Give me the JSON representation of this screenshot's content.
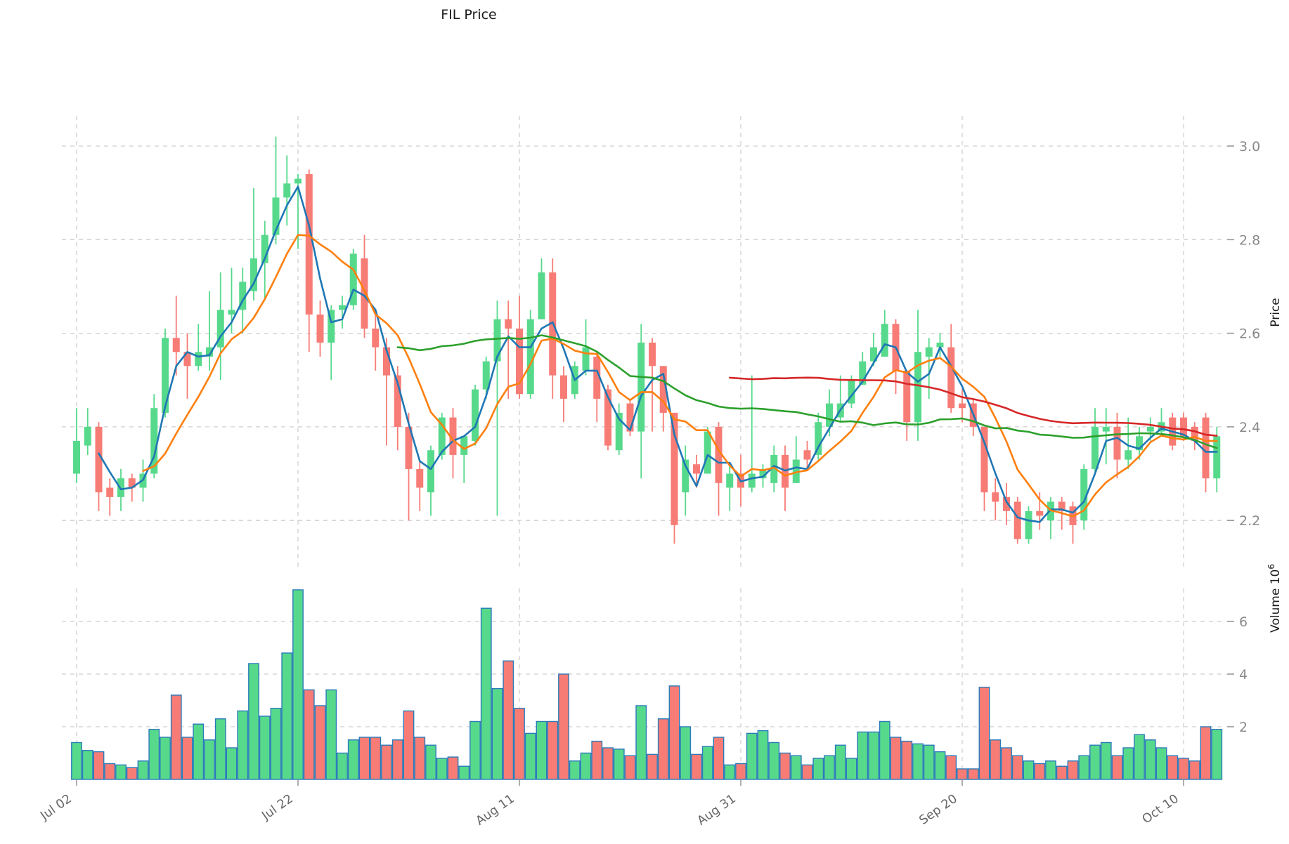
{
  "title": "FIL Price",
  "chart_data": {
    "type": "candlestick",
    "title": "FIL Price",
    "price_axis": {
      "label": "Price",
      "ticks": [
        "3.0",
        "2.8",
        "2.6",
        "2.4",
        "2.2"
      ],
      "tick_values": [
        3.0,
        2.8,
        2.6,
        2.4,
        2.2
      ],
      "ylim": [
        2.09,
        3.06
      ],
      "grid": true
    },
    "volume_axis": {
      "label": "Volume",
      "unit_base": "10",
      "unit_exp": "6",
      "ticks": [
        "6",
        "4",
        "2"
      ],
      "tick_values": [
        6,
        4,
        2
      ],
      "ylim": [
        0,
        7.2
      ],
      "grid": true
    },
    "x_ticks": [
      "Jul 02",
      "Jul 22",
      "Aug 11",
      "Aug 31",
      "Sep 20",
      "Oct 10"
    ],
    "colors": {
      "up": "#57d98c",
      "down": "#f77c76",
      "volume_border": "#2b7bba",
      "ma_fast": "#1f77b4",
      "ma_mid": "#ff7f0e",
      "ma_slow": "#2ca02c",
      "ma_slowest": "#d62728",
      "grid": "#cfcfcf",
      "tick_label": "#8a8a8a",
      "axis_label": "#1a1a1a"
    },
    "moving_averages": [
      {
        "name": "MA3",
        "window": 3,
        "color_key": "ma_fast"
      },
      {
        "name": "MA7",
        "window": 7,
        "color_key": "ma_mid"
      },
      {
        "name": "MA30",
        "window": 30,
        "color_key": "ma_slow"
      },
      {
        "name": "MA60",
        "window": 60,
        "color_key": "ma_slowest"
      }
    ],
    "candles": [
      {
        "d": "Jul 02",
        "o": 2.3,
        "h": 2.44,
        "l": 2.28,
        "c": 2.37,
        "v": 1.4
      },
      {
        "d": "Jul 03",
        "o": 2.36,
        "h": 2.44,
        "l": 2.34,
        "c": 2.4,
        "v": 1.1
      },
      {
        "d": "Jul 04",
        "o": 2.4,
        "h": 2.41,
        "l": 2.22,
        "c": 2.26,
        "v": 1.05
      },
      {
        "d": "Jul 05",
        "o": 2.27,
        "h": 2.29,
        "l": 2.21,
        "c": 2.25,
        "v": 0.6
      },
      {
        "d": "Jul 06",
        "o": 2.25,
        "h": 2.31,
        "l": 2.22,
        "c": 2.29,
        "v": 0.55
      },
      {
        "d": "Jul 07",
        "o": 2.29,
        "h": 2.3,
        "l": 2.24,
        "c": 2.27,
        "v": 0.45
      },
      {
        "d": "Jul 08",
        "o": 2.27,
        "h": 2.33,
        "l": 2.24,
        "c": 2.3,
        "v": 0.7
      },
      {
        "d": "Jul 09",
        "o": 2.3,
        "h": 2.47,
        "l": 2.29,
        "c": 2.44,
        "v": 1.9
      },
      {
        "d": "Jul 10",
        "o": 2.43,
        "h": 2.61,
        "l": 2.42,
        "c": 2.59,
        "v": 1.6
      },
      {
        "d": "Jul 11",
        "o": 2.59,
        "h": 2.68,
        "l": 2.51,
        "c": 2.56,
        "v": 3.2
      },
      {
        "d": "Jul 12",
        "o": 2.56,
        "h": 2.6,
        "l": 2.46,
        "c": 2.53,
        "v": 1.6
      },
      {
        "d": "Jul 13",
        "o": 2.53,
        "h": 2.62,
        "l": 2.52,
        "c": 2.56,
        "v": 2.1
      },
      {
        "d": "Jul 14",
        "o": 2.55,
        "h": 2.69,
        "l": 2.52,
        "c": 2.57,
        "v": 1.5
      },
      {
        "d": "Jul 15",
        "o": 2.57,
        "h": 2.73,
        "l": 2.5,
        "c": 2.65,
        "v": 2.3
      },
      {
        "d": "Jul 16",
        "o": 2.64,
        "h": 2.74,
        "l": 2.6,
        "c": 2.65,
        "v": 1.2
      },
      {
        "d": "Jul 17",
        "o": 2.65,
        "h": 2.74,
        "l": 2.6,
        "c": 2.71,
        "v": 2.6
      },
      {
        "d": "Jul 18",
        "o": 2.69,
        "h": 2.91,
        "l": 2.67,
        "c": 2.76,
        "v": 4.4
      },
      {
        "d": "Jul 19",
        "o": 2.75,
        "h": 2.84,
        "l": 2.67,
        "c": 2.81,
        "v": 2.4
      },
      {
        "d": "Jul 20",
        "o": 2.81,
        "h": 3.02,
        "l": 2.79,
        "c": 2.89,
        "v": 2.7
      },
      {
        "d": "Jul 21",
        "o": 2.89,
        "h": 2.98,
        "l": 2.83,
        "c": 2.92,
        "v": 4.8
      },
      {
        "d": "Jul 22",
        "o": 2.92,
        "h": 2.94,
        "l": 2.78,
        "c": 2.93,
        "v": 7.2
      },
      {
        "d": "Jul 23",
        "o": 2.94,
        "h": 2.95,
        "l": 2.56,
        "c": 2.64,
        "v": 3.4
      },
      {
        "d": "Jul 24",
        "o": 2.64,
        "h": 2.67,
        "l": 2.55,
        "c": 2.58,
        "v": 2.8
      },
      {
        "d": "Jul 25",
        "o": 2.58,
        "h": 2.66,
        "l": 2.5,
        "c": 2.65,
        "v": 3.4
      },
      {
        "d": "Jul 26",
        "o": 2.65,
        "h": 2.68,
        "l": 2.61,
        "c": 2.66,
        "v": 1.0
      },
      {
        "d": "Jul 27",
        "o": 2.66,
        "h": 2.78,
        "l": 2.65,
        "c": 2.77,
        "v": 1.5
      },
      {
        "d": "Jul 28",
        "o": 2.76,
        "h": 2.81,
        "l": 2.59,
        "c": 2.61,
        "v": 1.6
      },
      {
        "d": "Jul 29",
        "o": 2.61,
        "h": 2.64,
        "l": 2.52,
        "c": 2.57,
        "v": 1.6
      },
      {
        "d": "Jul 30",
        "o": 2.57,
        "h": 2.59,
        "l": 2.36,
        "c": 2.51,
        "v": 1.3
      },
      {
        "d": "Jul 31",
        "o": 2.51,
        "h": 2.53,
        "l": 2.35,
        "c": 2.4,
        "v": 1.5
      },
      {
        "d": "Aug 01",
        "o": 2.4,
        "h": 2.43,
        "l": 2.2,
        "c": 2.31,
        "v": 2.6
      },
      {
        "d": "Aug 02",
        "o": 2.31,
        "h": 2.33,
        "l": 2.22,
        "c": 2.27,
        "v": 1.6
      },
      {
        "d": "Aug 03",
        "o": 2.26,
        "h": 2.36,
        "l": 2.21,
        "c": 2.35,
        "v": 1.3
      },
      {
        "d": "Aug 04",
        "o": 2.34,
        "h": 2.43,
        "l": 2.33,
        "c": 2.42,
        "v": 0.8
      },
      {
        "d": "Aug 05",
        "o": 2.42,
        "h": 2.44,
        "l": 2.29,
        "c": 2.34,
        "v": 0.85
      },
      {
        "d": "Aug 06",
        "o": 2.34,
        "h": 2.38,
        "l": 2.28,
        "c": 2.38,
        "v": 0.5
      },
      {
        "d": "Aug 07",
        "o": 2.37,
        "h": 2.49,
        "l": 2.36,
        "c": 2.48,
        "v": 2.2
      },
      {
        "d": "Aug 08",
        "o": 2.48,
        "h": 2.55,
        "l": 2.46,
        "c": 2.54,
        "v": 6.5
      },
      {
        "d": "Aug 09",
        "o": 2.54,
        "h": 2.67,
        "l": 2.21,
        "c": 2.63,
        "v": 3.45
      },
      {
        "d": "Aug 10",
        "o": 2.63,
        "h": 2.67,
        "l": 2.46,
        "c": 2.61,
        "v": 4.5
      },
      {
        "d": "Aug 11",
        "o": 2.61,
        "h": 2.68,
        "l": 2.46,
        "c": 2.47,
        "v": 2.7
      },
      {
        "d": "Aug 12",
        "o": 2.47,
        "h": 2.65,
        "l": 2.46,
        "c": 2.63,
        "v": 1.75
      },
      {
        "d": "Aug 13",
        "o": 2.63,
        "h": 2.76,
        "l": 2.63,
        "c": 2.73,
        "v": 2.2
      },
      {
        "d": "Aug 14",
        "o": 2.73,
        "h": 2.76,
        "l": 2.46,
        "c": 2.51,
        "v": 2.2
      },
      {
        "d": "Aug 15",
        "o": 2.51,
        "h": 2.53,
        "l": 2.41,
        "c": 2.46,
        "v": 4.0
      },
      {
        "d": "Aug 16",
        "o": 2.47,
        "h": 2.54,
        "l": 2.46,
        "c": 2.53,
        "v": 0.7
      },
      {
        "d": "Aug 17",
        "o": 2.52,
        "h": 2.63,
        "l": 2.51,
        "c": 2.57,
        "v": 1.0
      },
      {
        "d": "Aug 18",
        "o": 2.55,
        "h": 2.56,
        "l": 2.41,
        "c": 2.46,
        "v": 1.45
      },
      {
        "d": "Aug 19",
        "o": 2.48,
        "h": 2.49,
        "l": 2.35,
        "c": 2.36,
        "v": 1.2
      },
      {
        "d": "Aug 20",
        "o": 2.35,
        "h": 2.45,
        "l": 2.34,
        "c": 2.43,
        "v": 1.15
      },
      {
        "d": "Aug 21",
        "o": 2.45,
        "h": 2.46,
        "l": 2.38,
        "c": 2.39,
        "v": 0.9
      },
      {
        "d": "Aug 22",
        "o": 2.39,
        "h": 2.62,
        "l": 2.29,
        "c": 2.58,
        "v": 2.8
      },
      {
        "d": "Aug 23",
        "o": 2.58,
        "h": 2.59,
        "l": 2.39,
        "c": 2.53,
        "v": 0.95
      },
      {
        "d": "Aug 24",
        "o": 2.53,
        "h": 2.53,
        "l": 2.39,
        "c": 2.43,
        "v": 2.3
      },
      {
        "d": "Aug 25",
        "o": 2.43,
        "h": 2.43,
        "l": 2.15,
        "c": 2.19,
        "v": 3.55
      },
      {
        "d": "Aug 26",
        "o": 2.26,
        "h": 2.36,
        "l": 2.21,
        "c": 2.33,
        "v": 2.0
      },
      {
        "d": "Aug 27",
        "o": 2.32,
        "h": 2.34,
        "l": 2.27,
        "c": 2.3,
        "v": 0.95
      },
      {
        "d": "Aug 28",
        "o": 2.3,
        "h": 2.4,
        "l": 2.3,
        "c": 2.39,
        "v": 1.25
      },
      {
        "d": "Aug 29",
        "o": 2.4,
        "h": 2.41,
        "l": 2.21,
        "c": 2.28,
        "v": 1.6
      },
      {
        "d": "Aug 30",
        "o": 2.27,
        "h": 2.32,
        "l": 2.22,
        "c": 2.3,
        "v": 0.55
      },
      {
        "d": "Aug 31",
        "o": 2.3,
        "h": 2.34,
        "l": 2.23,
        "c": 2.27,
        "v": 0.6
      },
      {
        "d": "Sep 01",
        "o": 2.27,
        "h": 2.51,
        "l": 2.26,
        "c": 2.3,
        "v": 1.75
      },
      {
        "d": "Sep 02",
        "o": 2.29,
        "h": 2.32,
        "l": 2.27,
        "c": 2.31,
        "v": 1.85
      },
      {
        "d": "Sep 03",
        "o": 2.28,
        "h": 2.36,
        "l": 2.26,
        "c": 2.34,
        "v": 1.4
      },
      {
        "d": "Sep 04",
        "o": 2.34,
        "h": 2.36,
        "l": 2.22,
        "c": 2.27,
        "v": 1.0
      },
      {
        "d": "Sep 05",
        "o": 2.28,
        "h": 2.38,
        "l": 2.28,
        "c": 2.33,
        "v": 0.9
      },
      {
        "d": "Sep 06",
        "o": 2.35,
        "h": 2.37,
        "l": 2.31,
        "c": 2.33,
        "v": 0.55
      },
      {
        "d": "Sep 07",
        "o": 2.34,
        "h": 2.43,
        "l": 2.33,
        "c": 2.41,
        "v": 0.8
      },
      {
        "d": "Sep 08",
        "o": 2.4,
        "h": 2.48,
        "l": 2.38,
        "c": 2.45,
        "v": 0.9
      },
      {
        "d": "Sep 09",
        "o": 2.42,
        "h": 2.51,
        "l": 2.41,
        "c": 2.45,
        "v": 1.3
      },
      {
        "d": "Sep 10",
        "o": 2.45,
        "h": 2.51,
        "l": 2.44,
        "c": 2.5,
        "v": 0.8
      },
      {
        "d": "Sep 11",
        "o": 2.49,
        "h": 2.56,
        "l": 2.49,
        "c": 2.54,
        "v": 1.8
      },
      {
        "d": "Sep 12",
        "o": 2.54,
        "h": 2.6,
        "l": 2.53,
        "c": 2.57,
        "v": 1.8
      },
      {
        "d": "Sep 13",
        "o": 2.55,
        "h": 2.65,
        "l": 2.55,
        "c": 2.62,
        "v": 2.2
      },
      {
        "d": "Sep 14",
        "o": 2.62,
        "h": 2.63,
        "l": 2.47,
        "c": 2.52,
        "v": 1.6
      },
      {
        "d": "Sep 15",
        "o": 2.52,
        "h": 2.52,
        "l": 2.37,
        "c": 2.41,
        "v": 1.45
      },
      {
        "d": "Sep 16",
        "o": 2.41,
        "h": 2.65,
        "l": 2.37,
        "c": 2.56,
        "v": 1.35
      },
      {
        "d": "Sep 17",
        "o": 2.55,
        "h": 2.59,
        "l": 2.46,
        "c": 2.57,
        "v": 1.3
      },
      {
        "d": "Sep 18",
        "o": 2.57,
        "h": 2.6,
        "l": 2.55,
        "c": 2.58,
        "v": 1.05
      },
      {
        "d": "Sep 19",
        "o": 2.57,
        "h": 2.62,
        "l": 2.43,
        "c": 2.44,
        "v": 0.9
      },
      {
        "d": "Sep 20",
        "o": 2.45,
        "h": 2.48,
        "l": 2.41,
        "c": 2.44,
        "v": 0.4
      },
      {
        "d": "Sep 21",
        "o": 2.45,
        "h": 2.46,
        "l": 2.38,
        "c": 2.4,
        "v": 0.4
      },
      {
        "d": "Sep 22",
        "o": 2.4,
        "h": 2.4,
        "l": 2.22,
        "c": 2.26,
        "v": 3.5
      },
      {
        "d": "Sep 23",
        "o": 2.26,
        "h": 2.29,
        "l": 2.2,
        "c": 2.24,
        "v": 1.5
      },
      {
        "d": "Sep 24",
        "o": 2.25,
        "h": 2.28,
        "l": 2.19,
        "c": 2.22,
        "v": 1.2
      },
      {
        "d": "Sep 25",
        "o": 2.24,
        "h": 2.25,
        "l": 2.15,
        "c": 2.16,
        "v": 0.9
      },
      {
        "d": "Sep 26",
        "o": 2.16,
        "h": 2.23,
        "l": 2.15,
        "c": 2.22,
        "v": 0.7
      },
      {
        "d": "Sep 27",
        "o": 2.22,
        "h": 2.26,
        "l": 2.18,
        "c": 2.21,
        "v": 0.6
      },
      {
        "d": "Sep 28",
        "o": 2.2,
        "h": 2.25,
        "l": 2.16,
        "c": 2.24,
        "v": 0.7
      },
      {
        "d": "Sep 29",
        "o": 2.24,
        "h": 2.25,
        "l": 2.18,
        "c": 2.22,
        "v": 0.5
      },
      {
        "d": "Sep 30",
        "o": 2.23,
        "h": 2.24,
        "l": 2.15,
        "c": 2.19,
        "v": 0.7
      },
      {
        "d": "Oct 01",
        "o": 2.2,
        "h": 2.32,
        "l": 2.18,
        "c": 2.31,
        "v": 0.9
      },
      {
        "d": "Oct 02",
        "o": 2.31,
        "h": 2.44,
        "l": 2.3,
        "c": 2.4,
        "v": 1.3
      },
      {
        "d": "Oct 03",
        "o": 2.39,
        "h": 2.44,
        "l": 2.32,
        "c": 2.4,
        "v": 1.4
      },
      {
        "d": "Oct 04",
        "o": 2.4,
        "h": 2.43,
        "l": 2.29,
        "c": 2.33,
        "v": 0.9
      },
      {
        "d": "Oct 05",
        "o": 2.33,
        "h": 2.42,
        "l": 2.31,
        "c": 2.35,
        "v": 1.2
      },
      {
        "d": "Oct 06",
        "o": 2.35,
        "h": 2.4,
        "l": 2.33,
        "c": 2.38,
        "v": 1.7
      },
      {
        "d": "Oct 07",
        "o": 2.39,
        "h": 2.42,
        "l": 2.37,
        "c": 2.4,
        "v": 1.5
      },
      {
        "d": "Oct 08",
        "o": 2.39,
        "h": 2.44,
        "l": 2.38,
        "c": 2.41,
        "v": 1.2
      },
      {
        "d": "Oct 09",
        "o": 2.42,
        "h": 2.43,
        "l": 2.35,
        "c": 2.36,
        "v": 0.9
      },
      {
        "d": "Oct 10",
        "o": 2.42,
        "h": 2.43,
        "l": 2.37,
        "c": 2.38,
        "v": 0.8
      },
      {
        "d": "Oct 11",
        "o": 2.4,
        "h": 2.41,
        "l": 2.35,
        "c": 2.37,
        "v": 0.7
      },
      {
        "d": "Oct 12",
        "o": 2.42,
        "h": 2.43,
        "l": 2.26,
        "c": 2.29,
        "v": 2.0
      },
      {
        "d": "Oct 13",
        "o": 2.29,
        "h": 2.4,
        "l": 2.26,
        "c": 2.38,
        "v": 1.9
      }
    ]
  }
}
